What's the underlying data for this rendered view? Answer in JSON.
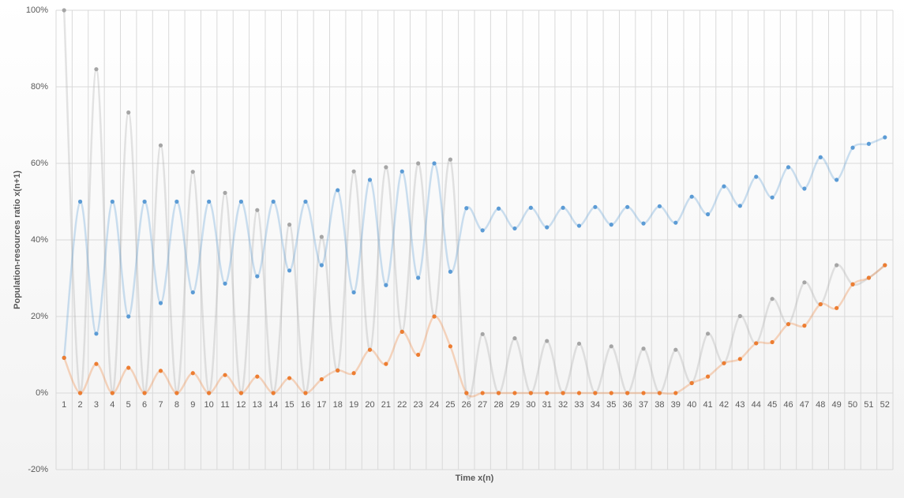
{
  "chart_data": {
    "type": "line",
    "y_label": "Population-resources  ratio x(n+1)",
    "x_label": "Time x(n)",
    "categories": [
      1,
      2,
      3,
      4,
      5,
      6,
      7,
      8,
      9,
      10,
      11,
      12,
      13,
      14,
      15,
      16,
      17,
      18,
      19,
      20,
      21,
      22,
      23,
      24,
      25,
      26,
      27,
      28,
      29,
      30,
      31,
      32,
      33,
      34,
      35,
      36,
      37,
      38,
      39,
      40,
      41,
      42,
      43,
      44,
      45,
      46,
      47,
      48,
      49,
      50,
      51,
      52
    ],
    "ylim": [
      -20,
      100
    ],
    "yticks": [
      {
        "value": -20,
        "label": "-20%"
      },
      {
        "value": 0,
        "label": "0%"
      },
      {
        "value": 20,
        "label": "20%"
      },
      {
        "value": 40,
        "label": "40%"
      },
      {
        "value": 60,
        "label": "60%"
      },
      {
        "value": 80,
        "label": "80%"
      },
      {
        "value": 100,
        "label": "100%"
      }
    ],
    "grid": true,
    "series": [
      {
        "color": "#a5a5a5",
        "values": [
          100,
          0,
          84.6,
          0,
          73.3,
          0,
          64.7,
          0,
          57.8,
          0,
          52.3,
          0,
          47.8,
          0,
          44,
          0,
          40.8,
          5.9,
          57.9,
          11.3,
          59,
          16,
          60,
          20,
          61,
          0,
          15.4,
          0,
          14.3,
          0,
          13.6,
          0,
          12.9,
          0,
          12.2,
          0,
          11.6,
          0,
          11.3,
          2.6,
          15.5,
          7.8,
          20.1,
          13,
          24.6,
          18,
          28.9,
          23.2,
          33.4,
          28.4,
          30.1,
          33.4
        ]
      },
      {
        "color": "#5b9bd5",
        "values": [
          9.2,
          50,
          15.5,
          50,
          20,
          50,
          23.5,
          50,
          26.3,
          50,
          28.6,
          50,
          30.5,
          50,
          32,
          50,
          33.4,
          53,
          26.3,
          55.7,
          28.2,
          57.9,
          30.1,
          60,
          31.7,
          48.3,
          42.5,
          48.2,
          43,
          48.4,
          43.3,
          48.4,
          43.7,
          48.6,
          44,
          48.6,
          44.3,
          48.8,
          44.5,
          51.3,
          46.7,
          54,
          48.9,
          56.5,
          51.1,
          59,
          53.4,
          61.6,
          55.7,
          64.1,
          65.1,
          66.8
        ]
      },
      {
        "color": "#ed7d31",
        "values": [
          9.2,
          0,
          7.6,
          0,
          6.6,
          0,
          5.8,
          0,
          5.2,
          0,
          4.7,
          0,
          4.3,
          0,
          3.9,
          0,
          3.6,
          5.9,
          5.2,
          11.3,
          7.6,
          16,
          10,
          20,
          12.2,
          0,
          0,
          0,
          0,
          0,
          0,
          0,
          0,
          0,
          0,
          0,
          0,
          0,
          0,
          2.6,
          4.3,
          7.8,
          8.9,
          13,
          13.3,
          18,
          17.6,
          23.2,
          22.2,
          28.4,
          30.1,
          33.4
        ]
      }
    ]
  }
}
